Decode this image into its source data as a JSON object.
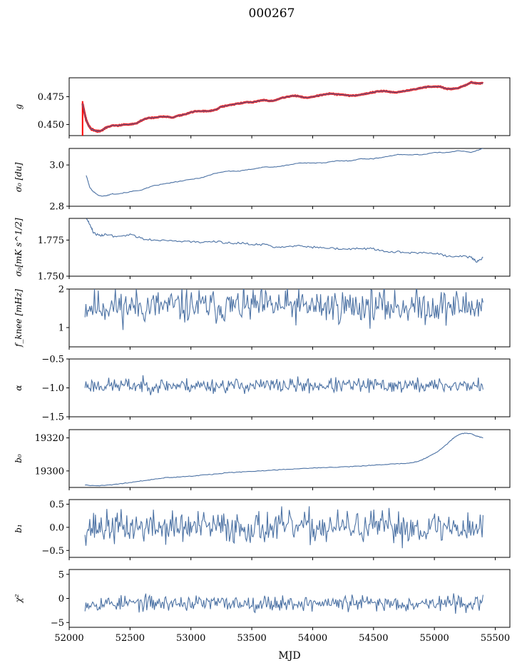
{
  "figure": {
    "title": "000267",
    "xlabel": "MJD"
  },
  "colors": {
    "series": "#4c72a4",
    "overlay": "#ff0000",
    "axis": "#000000"
  },
  "chart_data": [
    {
      "type": "line",
      "ylabel": "g",
      "ylim": [
        0.44,
        0.492
      ],
      "yticks": [
        0.45,
        0.475
      ],
      "ytick_labels": [
        "0.450",
        "0.475"
      ],
      "xlim": [
        52000,
        55620
      ],
      "overlay_series": true,
      "x": [
        52110,
        52125,
        52140,
        52160,
        52180,
        52200,
        52230,
        52260,
        52300,
        52350,
        52400,
        52450,
        52500,
        52550,
        52600,
        52650,
        52700,
        52750,
        52800,
        52850,
        52900,
        52950,
        53000,
        53050,
        53100,
        53150,
        53200,
        53250,
        53300,
        53350,
        53400,
        53450,
        53500,
        53550,
        53600,
        53650,
        53700,
        53750,
        53800,
        53850,
        53900,
        53950,
        54000,
        54050,
        54100,
        54150,
        54200,
        54250,
        54300,
        54350,
        54400,
        54450,
        54500,
        54550,
        54600,
        54650,
        54700,
        54750,
        54800,
        54850,
        54900,
        54950,
        55000,
        55050,
        55100,
        55150,
        55200,
        55250,
        55300,
        55350,
        55400
      ],
      "y": [
        0.469,
        0.461,
        0.454,
        0.449,
        0.446,
        0.445,
        0.444,
        0.444,
        0.447,
        0.449,
        0.449,
        0.45,
        0.45,
        0.451,
        0.454,
        0.456,
        0.456,
        0.457,
        0.457,
        0.456,
        0.458,
        0.459,
        0.461,
        0.462,
        0.462,
        0.462,
        0.463,
        0.466,
        0.467,
        0.468,
        0.469,
        0.47,
        0.47,
        0.471,
        0.472,
        0.471,
        0.472,
        0.474,
        0.475,
        0.476,
        0.475,
        0.474,
        0.475,
        0.476,
        0.477,
        0.478,
        0.477,
        0.477,
        0.476,
        0.476,
        0.477,
        0.478,
        0.479,
        0.48,
        0.48,
        0.479,
        0.479,
        0.48,
        0.481,
        0.482,
        0.483,
        0.484,
        0.484,
        0.484,
        0.482,
        0.482,
        0.483,
        0.485,
        0.488,
        0.487,
        0.487
      ]
    },
    {
      "type": "line",
      "ylabel": "σ₀ [du]",
      "ylim": [
        2.8,
        3.08
      ],
      "yticks": [
        2.8,
        3.0
      ],
      "ytick_labels": [
        "2.8",
        "3.0"
      ],
      "xlim": [
        52000,
        55620
      ],
      "x": [
        52140,
        52170,
        52200,
        52250,
        52300,
        52350,
        52400,
        52500,
        52600,
        52700,
        52800,
        52900,
        53000,
        53100,
        53200,
        53300,
        53400,
        53500,
        53600,
        53700,
        53800,
        53900,
        54000,
        54100,
        54200,
        54300,
        54400,
        54500,
        54600,
        54700,
        54800,
        54900,
        55000,
        55100,
        55200,
        55300,
        55400
      ],
      "y": [
        2.95,
        2.89,
        2.87,
        2.85,
        2.85,
        2.86,
        2.86,
        2.87,
        2.88,
        2.9,
        2.91,
        2.92,
        2.93,
        2.94,
        2.96,
        2.97,
        2.97,
        2.98,
        2.99,
        2.99,
        3.0,
        3.01,
        3.01,
        3.01,
        3.02,
        3.02,
        3.03,
        3.03,
        3.04,
        3.05,
        3.05,
        3.05,
        3.06,
        3.06,
        3.07,
        3.06,
        3.08
      ]
    },
    {
      "type": "line",
      "ylabel": "σ₀[mK s^1/2]",
      "ylim": [
        1.75,
        1.79
      ],
      "yticks": [
        1.75,
        1.775
      ],
      "ytick_labels": [
        "1.750",
        "1.775"
      ],
      "xlim": [
        52000,
        55620
      ],
      "x": [
        52140,
        52170,
        52200,
        52250,
        52300,
        52400,
        52500,
        52600,
        52700,
        52800,
        52900,
        53000,
        53100,
        53200,
        53300,
        53400,
        53500,
        53600,
        53700,
        53800,
        53900,
        54000,
        54100,
        54200,
        54300,
        54400,
        54500,
        54600,
        54700,
        54800,
        54900,
        55000,
        55100,
        55200,
        55300,
        55350,
        55400
      ],
      "y": [
        1.79,
        1.786,
        1.78,
        1.778,
        1.779,
        1.777,
        1.779,
        1.776,
        1.775,
        1.775,
        1.774,
        1.774,
        1.773,
        1.774,
        1.773,
        1.773,
        1.772,
        1.772,
        1.77,
        1.771,
        1.771,
        1.77,
        1.77,
        1.769,
        1.769,
        1.769,
        1.769,
        1.767,
        1.767,
        1.766,
        1.766,
        1.766,
        1.764,
        1.764,
        1.763,
        1.76,
        1.763
      ]
    },
    {
      "type": "line",
      "ylabel": "f_knee [mHz]",
      "ylim": [
        0.5,
        2.0
      ],
      "yticks": [
        1,
        2
      ],
      "ytick_labels": [
        "1",
        "2"
      ],
      "xlim": [
        52000,
        55620
      ],
      "noise": {
        "x_start": 52130,
        "x_end": 55400,
        "count": 420,
        "center": 1.55,
        "amplitude": 0.28,
        "seed": 11
      }
    },
    {
      "type": "line",
      "ylabel": "α",
      "ylim": [
        -1.5,
        -0.5
      ],
      "yticks": [
        -1.5,
        -1.0,
        -0.5
      ],
      "ytick_labels": [
        "−1.5",
        "−1.0",
        "−0.5"
      ],
      "xlim": [
        52000,
        55620
      ],
      "noise": {
        "x_start": 52130,
        "x_end": 55400,
        "count": 420,
        "center": -0.96,
        "amplitude": 0.08,
        "seed": 23
      }
    },
    {
      "type": "line",
      "ylabel": "b₀",
      "ylim": [
        19290,
        19325
      ],
      "yticks": [
        19300,
        19320
      ],
      "ytick_labels": [
        "19300",
        "19320"
      ],
      "xlim": [
        52000,
        55620
      ],
      "x": [
        52130,
        52200,
        52300,
        52400,
        52500,
        52600,
        52700,
        52800,
        52900,
        53000,
        53100,
        53200,
        53300,
        53400,
        53500,
        53600,
        53700,
        53800,
        53900,
        54000,
        54100,
        54200,
        54300,
        54400,
        54500,
        54600,
        54700,
        54800,
        54850,
        54900,
        54950,
        55000,
        55050,
        55100,
        55150,
        55200,
        55250,
        55300,
        55350,
        55400
      ],
      "y": [
        19291.5,
        19291.0,
        19291.2,
        19292.0,
        19293.0,
        19294.0,
        19295.0,
        19296.0,
        19296.3,
        19296.8,
        19297.5,
        19298.0,
        19299.0,
        19299.3,
        19299.7,
        19300.2,
        19300.6,
        19301.0,
        19301.4,
        19301.8,
        19302.0,
        19302.3,
        19302.6,
        19303.0,
        19303.5,
        19304.0,
        19304.3,
        19304.8,
        19305.5,
        19306.8,
        19308.5,
        19310.5,
        19313.0,
        19316.0,
        19319.5,
        19322.0,
        19323.0,
        19322.5,
        19321.0,
        19320.0
      ]
    },
    {
      "type": "line",
      "ylabel": "b₁",
      "ylim": [
        -0.65,
        0.6
      ],
      "yticks": [
        -0.5,
        0.0,
        0.5
      ],
      "ytick_labels": [
        "−0.5",
        "0.0",
        "0.5"
      ],
      "xlim": [
        52000,
        55620
      ],
      "noise": {
        "x_start": 52130,
        "x_end": 55400,
        "count": 420,
        "center": 0.0,
        "amplitude": 0.22,
        "seed": 37
      }
    },
    {
      "type": "line",
      "ylabel": "χ²",
      "ylim": [
        -6,
        6
      ],
      "yticks": [
        -5,
        0,
        5
      ],
      "ytick_labels": [
        "−5",
        "0",
        "5"
      ],
      "xlim": [
        52000,
        55620
      ],
      "xticks": [
        52000,
        52500,
        53000,
        53500,
        54000,
        54500,
        55000,
        55500
      ],
      "xtick_labels": [
        "52000",
        "52500",
        "53000",
        "53500",
        "54000",
        "54500",
        "55000",
        "55500"
      ],
      "noise": {
        "x_start": 52130,
        "x_end": 55400,
        "count": 420,
        "center": -1.0,
        "amplitude": 1.0,
        "seed": 53
      }
    }
  ]
}
